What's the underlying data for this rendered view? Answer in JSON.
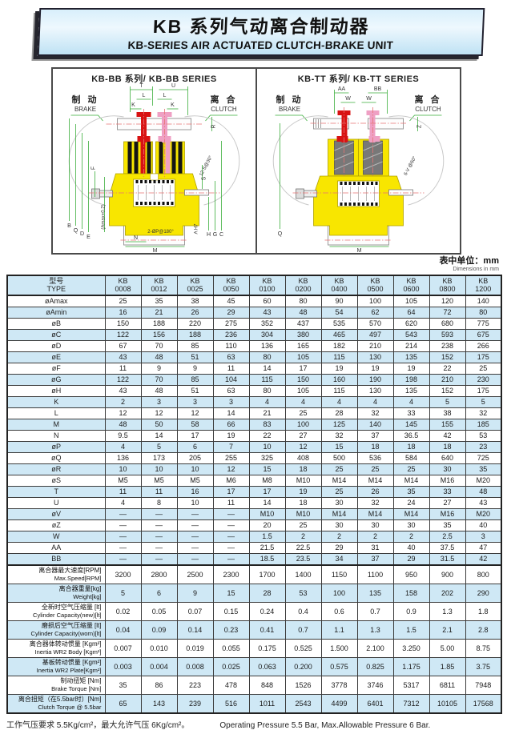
{
  "banner": {
    "title_zh": "KB 系列气动离合制动器",
    "title_en": "KB-SERIES AIR ACTUATED CLUTCH-BRAKE UNIT"
  },
  "diagrams": [
    {
      "title": "KB-BB 系列/ KB-BB SERIES",
      "brake_zh": "制 动",
      "brake_en": "BRAKE",
      "clutch_zh": "离 合",
      "clutch_en": "CLUTCH",
      "dim_labels": [
        "T",
        "L",
        "U",
        "L",
        "K",
        "K",
        "R",
        "12-S@30°",
        "F",
        "B",
        "Q",
        "D",
        "E",
        "(Amax+0.2)",
        "N",
        "M",
        "2-ØP@180°",
        "A H7",
        "H",
        "G",
        "C",
        "S"
      ]
    },
    {
      "title": "KB-TT 系列/ KB-TT SERIES",
      "brake_zh": "制 动",
      "brake_en": "BRAKE",
      "clutch_zh": "离 合",
      "clutch_en": "CLUTCH",
      "dim_labels": [
        "AA",
        "W",
        "W",
        "BB",
        "Z",
        "6-V @60°",
        "Q",
        "M"
      ]
    }
  ],
  "unit_note": {
    "zh": "表中单位：mm",
    "en": "Dimensions in mm"
  },
  "table": {
    "header": {
      "label_zh": "型号",
      "label_en": "TYPE",
      "model_prefix": "KB",
      "models": [
        "0008",
        "0012",
        "0025",
        "0050",
        "0100",
        "0200",
        "0400",
        "0500",
        "0600",
        "0800",
        "1200"
      ]
    },
    "rows": [
      {
        "label": "øAmax",
        "values": [
          "25",
          "35",
          "38",
          "45",
          "60",
          "80",
          "90",
          "100",
          "105",
          "120",
          "140"
        ]
      },
      {
        "label": "øAmin",
        "values": [
          "16",
          "21",
          "26",
          "29",
          "43",
          "48",
          "54",
          "62",
          "64",
          "72",
          "80"
        ]
      },
      {
        "label": "øB",
        "values": [
          "150",
          "188",
          "220",
          "275",
          "352",
          "437",
          "535",
          "570",
          "620",
          "680",
          "775"
        ]
      },
      {
        "label": "øC",
        "values": [
          "122",
          "156",
          "188",
          "236",
          "304",
          "380",
          "465",
          "497",
          "543",
          "593",
          "675"
        ]
      },
      {
        "label": "øD",
        "values": [
          "67",
          "70",
          "85",
          "110",
          "136",
          "165",
          "182",
          "210",
          "214",
          "238",
          "266"
        ]
      },
      {
        "label": "øE",
        "values": [
          "43",
          "48",
          "51",
          "63",
          "80",
          "105",
          "115",
          "130",
          "135",
          "152",
          "175"
        ]
      },
      {
        "label": "øF",
        "values": [
          "11",
          "9",
          "9",
          "11",
          "14",
          "17",
          "19",
          "19",
          "19",
          "22",
          "25"
        ]
      },
      {
        "label": "øG",
        "values": [
          "122",
          "70",
          "85",
          "104",
          "115",
          "150",
          "160",
          "190",
          "198",
          "210",
          "230"
        ]
      },
      {
        "label": "øH",
        "values": [
          "43",
          "48",
          "51",
          "63",
          "80",
          "105",
          "115",
          "130",
          "135",
          "152",
          "175"
        ]
      },
      {
        "label": "K",
        "values": [
          "2",
          "3",
          "3",
          "3",
          "4",
          "4",
          "4",
          "4",
          "4",
          "5",
          "5"
        ]
      },
      {
        "label": "L",
        "values": [
          "12",
          "12",
          "12",
          "14",
          "21",
          "25",
          "28",
          "32",
          "33",
          "38",
          "32"
        ]
      },
      {
        "label": "M",
        "values": [
          "48",
          "50",
          "58",
          "66",
          "83",
          "100",
          "125",
          "140",
          "145",
          "155",
          "185"
        ]
      },
      {
        "label": "N",
        "values": [
          "9.5",
          "14",
          "17",
          "19",
          "22",
          "27",
          "32",
          "37",
          "36.5",
          "42",
          "53"
        ]
      },
      {
        "label": "øP",
        "values": [
          "4",
          "5",
          "6",
          "7",
          "10",
          "12",
          "15",
          "18",
          "18",
          "18",
          "23"
        ]
      },
      {
        "label": "øQ",
        "values": [
          "136",
          "173",
          "205",
          "255",
          "325",
          "408",
          "500",
          "536",
          "584",
          "640",
          "725"
        ]
      },
      {
        "label": "øR",
        "values": [
          "10",
          "10",
          "10",
          "12",
          "15",
          "18",
          "25",
          "25",
          "25",
          "30",
          "35"
        ]
      },
      {
        "label": "øS",
        "values": [
          "M5",
          "M5",
          "M5",
          "M6",
          "M8",
          "M10",
          "M14",
          "M14",
          "M14",
          "M16",
          "M20"
        ]
      },
      {
        "label": "T",
        "values": [
          "11",
          "11",
          "16",
          "17",
          "17",
          "19",
          "25",
          "26",
          "35",
          "33",
          "48"
        ]
      },
      {
        "label": "U",
        "values": [
          "4",
          "8",
          "10",
          "11",
          "14",
          "18",
          "30",
          "32",
          "24",
          "27",
          "43"
        ]
      },
      {
        "label": "øV",
        "values": [
          "—",
          "—",
          "—",
          "—",
          "M10",
          "M10",
          "M14",
          "M14",
          "M14",
          "M16",
          "M20"
        ]
      },
      {
        "label": "øZ",
        "values": [
          "—",
          "—",
          "—",
          "—",
          "20",
          "25",
          "30",
          "30",
          "30",
          "35",
          "40"
        ]
      },
      {
        "label": "W",
        "values": [
          "—",
          "—",
          "—",
          "—",
          "1.5",
          "2",
          "2",
          "2",
          "2",
          "2.5",
          "3"
        ]
      },
      {
        "label": "AA",
        "values": [
          "—",
          "—",
          "—",
          "—",
          "21.5",
          "22.5",
          "29",
          "31",
          "40",
          "37.5",
          "47"
        ]
      },
      {
        "label": "BB",
        "values": [
          "—",
          "—",
          "—",
          "—",
          "18.5",
          "23.5",
          "34",
          "37",
          "29",
          "31.5",
          "42"
        ]
      },
      {
        "label_zh": "离合器最大速度[RPM]",
        "label_en": "Max.Speed[RPM]",
        "values": [
          "3200",
          "2800",
          "2500",
          "2300",
          "1700",
          "1400",
          "1150",
          "1100",
          "950",
          "900",
          "800"
        ]
      },
      {
        "label_zh": "离合器重量[kg]",
        "label_en": "Weight[kg]",
        "values": [
          "5",
          "6",
          "9",
          "15",
          "28",
          "53",
          "100",
          "135",
          "158",
          "202",
          "290"
        ]
      },
      {
        "label_zh": "全新时空气压缩量 [lt]",
        "label_en": "Cylinder Capacity(new)[lt]",
        "values": [
          "0.02",
          "0.05",
          "0.07",
          "0.15",
          "0.24",
          "0.4",
          "0.6",
          "0.7",
          "0.9",
          "1.3",
          "1.8"
        ]
      },
      {
        "label_zh": "磨损后空气压缩量 [lt]",
        "label_en": "Cylinder Capacity(worn)[lt]",
        "values": [
          "0.04",
          "0.09",
          "0.14",
          "0.23",
          "0.41",
          "0.7",
          "1.1",
          "1.3",
          "1.5",
          "2.1",
          "2.8"
        ]
      },
      {
        "label_zh": "离合器体转动惯量 [Kgm²]",
        "label_en": "Inertia WR2 Body [Kgm²]",
        "values": [
          "0.007",
          "0.010",
          "0.019",
          "0.055",
          "0.175",
          "0.525",
          "1.500",
          "2.100",
          "3.250",
          "5.00",
          "8.75"
        ]
      },
      {
        "label_zh": "基板转动惯量 [Kgm²]",
        "label_en": "Inertia WR2 Plate[Kgm²]",
        "values": [
          "0.003",
          "0.004",
          "0.008",
          "0.025",
          "0.063",
          "0.200",
          "0.575",
          "0.825",
          "1.175",
          "1.85",
          "3.75"
        ]
      },
      {
        "label_zh": "制动扭矩 [Nm]",
        "label_en": "Brake Torque [Nm]",
        "values": [
          "35",
          "86",
          "223",
          "478",
          "848",
          "1526",
          "3778",
          "3746",
          "5317",
          "6811",
          "7948"
        ]
      },
      {
        "label_zh": "离合扭矩（在5.5bar时）[Nm]",
        "label_en": "Clutch Torque @ 5.5bar",
        "values": [
          "65",
          "143",
          "239",
          "516",
          "1011",
          "2543",
          "4499",
          "6401",
          "7312",
          "10105",
          "17568"
        ]
      }
    ]
  },
  "footer": {
    "zh": "工作气压要求 5.5Kg/cm²，最大允许气压 6Kg/cm²。",
    "en": "Operating Pressure 5.5 Bar, Max.Allowable Pressure 6 Bar."
  },
  "colors": {
    "row_alt_blue": "#cfe8f5",
    "banner_border": "#20202e",
    "body_yellow": "#f8e600",
    "bolt_red": "#d81212",
    "bolt_pink": "#efa0c4",
    "dim_green": "#3aae3a"
  }
}
